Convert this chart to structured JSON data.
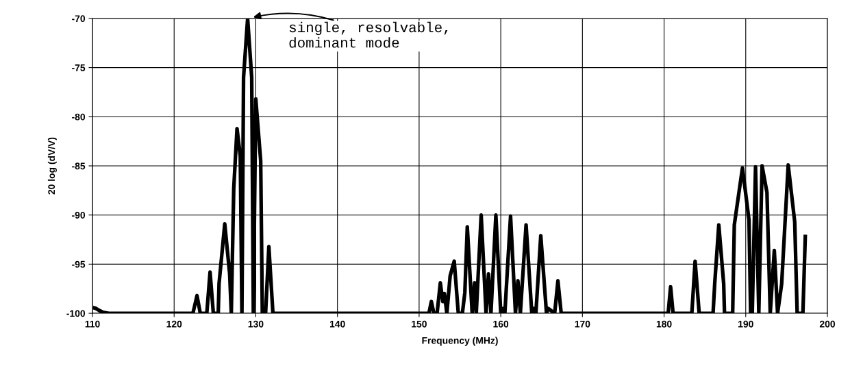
{
  "chart_data": {
    "type": "line",
    "xlabel": "Frequency (MHz)",
    "ylabel": "20 log (dV/V)",
    "xlim": [
      110,
      200
    ],
    "xticks": [
      110,
      120,
      130,
      140,
      150,
      160,
      170,
      180,
      190,
      200
    ],
    "ylim": [
      -100,
      -70
    ],
    "yticks": [
      -100,
      -95,
      -90,
      -85,
      -80,
      -75,
      -70
    ],
    "grid": true,
    "marker": "none",
    "line_style": "solid",
    "annotations": [
      {
        "text": "single, resolvable,\ndominant mode",
        "x": 129,
        "y": -70
      }
    ],
    "series": [
      {
        "color": "#000000",
        "x": [
          110,
          110.4,
          110.8,
          111.3,
          112,
          122.3,
          122.8,
          123.2,
          124,
          124.4,
          124.8,
          125.4,
          125.5,
          126.2,
          126.8,
          127,
          127.3,
          127.7,
          128.1,
          128.3,
          128.5,
          129,
          129.5,
          129.7,
          130,
          130.6,
          130.8,
          131.2,
          131.6,
          132.1,
          150,
          151.2,
          151.5,
          151.8,
          152.2,
          152.6,
          152.9,
          153.1,
          153.4,
          153.8,
          154.3,
          154.8,
          155.3,
          155.6,
          155.9,
          156.5,
          156.8,
          157.0,
          157.6,
          158.2,
          158.5,
          158.8,
          159.4,
          160.0,
          160.2,
          160.5,
          161.2,
          161.8,
          162.1,
          162.4,
          163.1,
          163.8,
          164.0,
          164.3,
          164.9,
          165.6,
          165.8,
          166.6,
          167.0,
          167.4,
          180.5,
          180.8,
          181.1,
          183.4,
          183.8,
          184.3,
          186.0,
          186.2,
          186.7,
          187.3,
          187.4,
          188.4,
          188.6,
          189.6,
          190.4,
          190.6,
          190.8,
          191.2,
          191.6,
          192.0,
          192.6,
          193.0,
          193.5,
          193.9,
          194.4,
          195.2,
          196.0,
          196.3,
          197.0,
          197.3
        ],
        "values": [
          -99.4,
          -99.5,
          -99.7,
          -99.9,
          -100,
          -100,
          -98.2,
          -100,
          -100,
          -95.8,
          -100,
          -100,
          -97,
          -90.9,
          -96,
          -100,
          -87.3,
          -81.2,
          -84,
          -100,
          -76,
          -70,
          -76,
          -100,
          -78.2,
          -84.5,
          -100,
          -100,
          -93.2,
          -100,
          -100,
          -100,
          -98.8,
          -100,
          -100,
          -96.9,
          -98.8,
          -98,
          -100,
          -96.2,
          -94.7,
          -100,
          -100,
          -97.9,
          -91.2,
          -100,
          -96.9,
          -100,
          -90,
          -100,
          -96,
          -100,
          -90,
          -100,
          -99.5,
          -100,
          -90.1,
          -100,
          -96.7,
          -100,
          -91,
          -100,
          -99.5,
          -100,
          -92.1,
          -100,
          -99.5,
          -100,
          -96.7,
          -100,
          -100,
          -97.3,
          -100,
          -100,
          -94.7,
          -100,
          -100,
          -97,
          -91,
          -97,
          -100,
          -100,
          -91,
          -85.2,
          -90.5,
          -100,
          -100,
          -85.1,
          -100,
          -85,
          -87.7,
          -100,
          -93.6,
          -100,
          -97,
          -84.9,
          -90.7,
          -100,
          -100,
          -92
        ]
      }
    ]
  }
}
